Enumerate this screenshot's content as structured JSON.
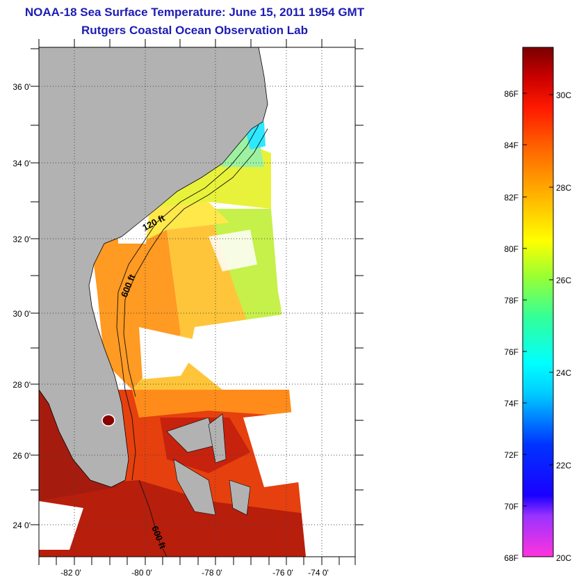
{
  "title": "NOAA-18 Sea Surface Temperature:  June 15, 2011 1954 GMT",
  "subtitle": "Rutgers Coastal Ocean Observation Lab",
  "map": {
    "lat_labels": [
      "36 0'",
      "34 0'",
      "32 0'",
      "30 0'",
      "28 0'",
      "26 0'",
      "24 0'"
    ],
    "lon_labels": [
      "-82 0'",
      "-80 0'",
      "-78 0'",
      "-76 0'",
      "-74 0'"
    ],
    "contour_labels": [
      "120 ft",
      "600 ft",
      "600 ft"
    ],
    "colors": {
      "land": "#b2b2b2",
      "cloud": "#ffffff"
    }
  },
  "colorbar": {
    "fahrenheit": [
      "86F",
      "84F",
      "82F",
      "80F",
      "78F",
      "76F",
      "74F",
      "72F",
      "70F",
      "68F"
    ],
    "celsius": [
      "30C",
      "28C",
      "26C",
      "24C",
      "22C",
      "20C"
    ],
    "range_f": [
      68,
      88
    ]
  }
}
